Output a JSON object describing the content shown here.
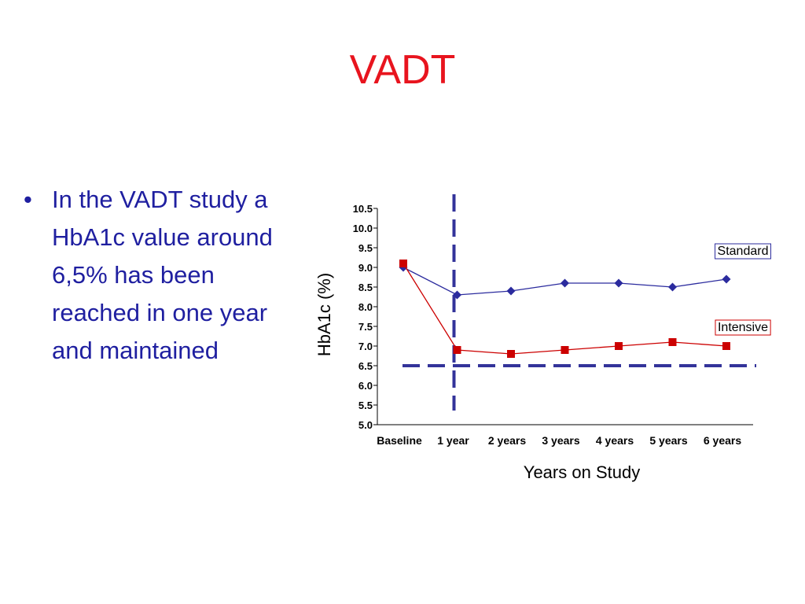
{
  "slide": {
    "title": "VADT",
    "title_color": "#e8141e",
    "bullet_text": "In the VADT study a HbA1c value around 6,5% has been reached in one year and maintained",
    "bullet_color": "#1f1fa0"
  },
  "chart_data": {
    "type": "line",
    "ylabel": "HbA1c (%)",
    "xlabel": "Years on Study",
    "categories": [
      "Baseline",
      "1 year",
      "2 years",
      "3 years",
      "4 years",
      "5 years",
      "6 years"
    ],
    "y_ticks": [
      "10.5",
      "10.0",
      "9.5",
      "9.0",
      "8.5",
      "8.0",
      "7.5",
      "7.0",
      "6.5",
      "6.0",
      "5.5",
      "5.0"
    ],
    "ylim": [
      5.0,
      10.5
    ],
    "grid": false,
    "series": [
      {
        "name": "Standard",
        "values": [
          9.0,
          8.3,
          8.4,
          8.6,
          8.6,
          8.5,
          8.7
        ],
        "color": "#2b2b9e",
        "marker": "diamond"
      },
      {
        "name": "Intensive",
        "values": [
          9.1,
          6.9,
          6.8,
          6.9,
          7.0,
          7.1,
          7.0
        ],
        "color": "#cc0000",
        "marker": "square"
      }
    ],
    "reference_lines": {
      "horizontal_y": 6.5,
      "vertical_at": "1 year",
      "color": "#33339a",
      "style": "dashed"
    }
  }
}
